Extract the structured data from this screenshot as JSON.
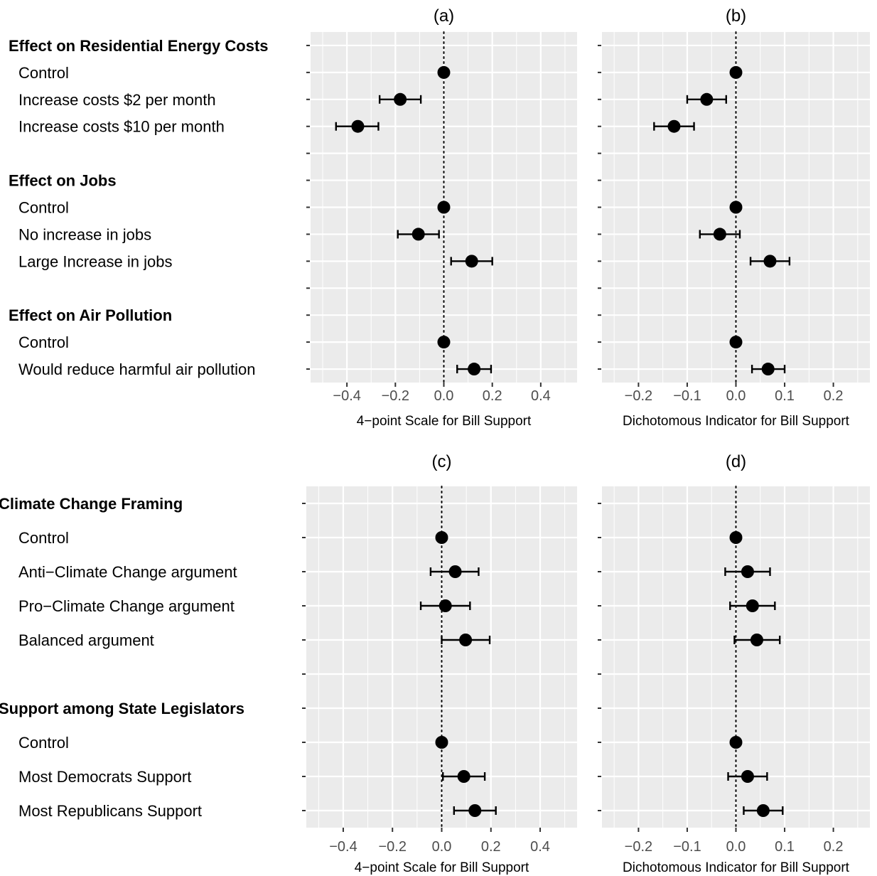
{
  "chart_data": [
    {
      "type": "scatter",
      "panel": "(a)",
      "xlabel": "4−point Scale for Bill Support",
      "xlim": [
        -0.55,
        0.55
      ],
      "xticks": [
        -0.4,
        -0.2,
        0.0,
        0.2,
        0.4
      ],
      "tick_labels": [
        "−0.4",
        "−0.2",
        "0.0",
        "0.2",
        "0.4"
      ],
      "zero_line": "dotted",
      "grid": true,
      "rows": [
        {
          "label": "Effect on Residential Energy Costs",
          "header": true
        },
        {
          "label": "Control",
          "estimate": 0.0
        },
        {
          "label": "Increase costs $2 per month",
          "estimate": -0.18,
          "lower": -0.265,
          "upper": -0.095
        },
        {
          "label": "Increase costs $10 per month",
          "estimate": -0.355,
          "lower": -0.445,
          "upper": -0.27
        },
        {
          "label": "",
          "spacer": true
        },
        {
          "label": "Effect on Jobs",
          "header": true
        },
        {
          "label": "Control",
          "estimate": 0.0
        },
        {
          "label": "No increase in jobs",
          "estimate": -0.105,
          "lower": -0.19,
          "upper": -0.02
        },
        {
          "label": "Large Increase in jobs",
          "estimate": 0.115,
          "lower": 0.03,
          "upper": 0.2
        },
        {
          "label": "",
          "spacer": true
        },
        {
          "label": "Effect on Air Pollution",
          "header": true
        },
        {
          "label": "Control",
          "estimate": 0.0
        },
        {
          "label": "Would reduce harmful air pollution",
          "estimate": 0.125,
          "lower": 0.055,
          "upper": 0.195
        }
      ]
    },
    {
      "type": "scatter",
      "panel": "(b)",
      "xlabel": "Dichotomous Indicator for Bill Support",
      "xlim": [
        -0.275,
        0.275
      ],
      "xticks": [
        -0.2,
        -0.1,
        0.0,
        0.1,
        0.2
      ],
      "tick_labels": [
        "−0.2",
        "−0.1",
        "0.0",
        "0.1",
        "0.2"
      ],
      "zero_line": "dotted",
      "grid": true,
      "rows": [
        {
          "header": true
        },
        {
          "estimate": 0.0
        },
        {
          "estimate": -0.06,
          "lower": -0.1,
          "upper": -0.02
        },
        {
          "estimate": -0.127,
          "lower": -0.168,
          "upper": -0.086
        },
        {
          "spacer": true
        },
        {
          "header": true
        },
        {
          "estimate": 0.0
        },
        {
          "estimate": -0.033,
          "lower": -0.074,
          "upper": 0.008
        },
        {
          "estimate": 0.07,
          "lower": 0.03,
          "upper": 0.11
        },
        {
          "spacer": true
        },
        {
          "header": true
        },
        {
          "estimate": 0.0
        },
        {
          "estimate": 0.066,
          "lower": 0.033,
          "upper": 0.1
        }
      ]
    },
    {
      "type": "scatter",
      "panel": "(c)",
      "xlabel": "4−point Scale for Bill Support",
      "xlim": [
        -0.55,
        0.55
      ],
      "xticks": [
        -0.4,
        -0.2,
        0.0,
        0.2,
        0.4
      ],
      "tick_labels": [
        "−0.4",
        "−0.2",
        "0.0",
        "0.2",
        "0.4"
      ],
      "zero_line": "dotted",
      "grid": true,
      "rows": [
        {
          "label": "Climate Change Framing",
          "header": true
        },
        {
          "label": "Control",
          "estimate": 0.0
        },
        {
          "label": "Anti−Climate Change argument",
          "estimate": 0.055,
          "lower": -0.045,
          "upper": 0.15
        },
        {
          "label": "Pro−Climate Change argument",
          "estimate": 0.015,
          "lower": -0.085,
          "upper": 0.115
        },
        {
          "label": "Balanced argument",
          "estimate": 0.097,
          "lower": 0.0,
          "upper": 0.195
        },
        {
          "label": "",
          "spacer": true
        },
        {
          "label": "Support among State Legislators",
          "header": true
        },
        {
          "label": "Control",
          "estimate": 0.0
        },
        {
          "label": "Most Democrats Support",
          "estimate": 0.09,
          "lower": 0.005,
          "upper": 0.175
        },
        {
          "label": "Most Republicans Support",
          "estimate": 0.135,
          "lower": 0.05,
          "upper": 0.22
        }
      ]
    },
    {
      "type": "scatter",
      "panel": "(d)",
      "xlabel": "Dichotomous Indicator for Bill Support",
      "xlim": [
        -0.275,
        0.275
      ],
      "xticks": [
        -0.2,
        -0.1,
        0.0,
        0.1,
        0.2
      ],
      "tick_labels": [
        "−0.2",
        "−0.1",
        "0.0",
        "0.1",
        "0.2"
      ],
      "zero_line": "dotted",
      "grid": true,
      "rows": [
        {
          "header": true
        },
        {
          "estimate": 0.0
        },
        {
          "estimate": 0.024,
          "lower": -0.022,
          "upper": 0.07
        },
        {
          "estimate": 0.034,
          "lower": -0.012,
          "upper": 0.08
        },
        {
          "estimate": 0.043,
          "lower": -0.003,
          "upper": 0.09
        },
        {
          "spacer": true
        },
        {
          "header": true
        },
        {
          "estimate": 0.0
        },
        {
          "estimate": 0.024,
          "lower": -0.016,
          "upper": 0.064
        },
        {
          "estimate": 0.056,
          "lower": 0.016,
          "upper": 0.096
        }
      ]
    }
  ]
}
